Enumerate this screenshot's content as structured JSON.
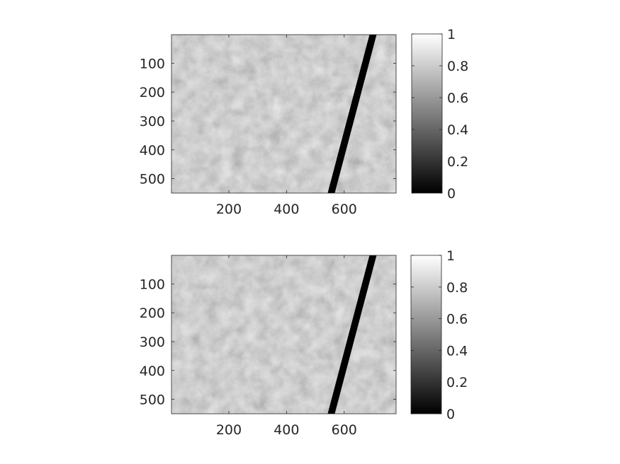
{
  "chart_data": [
    {
      "type": "heatmap",
      "title": "",
      "xlabel": "",
      "ylabel": "",
      "colormap": "gray",
      "xlim": [
        1,
        780
      ],
      "ylim": [
        1,
        550
      ],
      "y_reversed": true,
      "x_ticks": [
        200,
        400,
        600
      ],
      "x_tick_labels": [
        "200",
        "400",
        "600"
      ],
      "y_ticks": [
        100,
        200,
        300,
        400,
        500
      ],
      "y_tick_labels": [
        "100",
        "200",
        "300",
        "400",
        "500"
      ],
      "colorbar": {
        "range": [
          0,
          1
        ],
        "ticks": [
          0,
          0.2,
          0.4,
          0.6,
          0.8,
          1
        ],
        "tick_labels": [
          "0",
          "0.2",
          "0.4",
          "0.6",
          "0.8",
          "1"
        ]
      },
      "image_content": "grayscale electron-microscopy texture with a dark diagonal stripe from top (x≈700) to bottom (x≈555)",
      "stripe": {
        "top_x": 700,
        "bottom_x": 555,
        "value": 0
      }
    },
    {
      "type": "heatmap",
      "title": "",
      "xlabel": "",
      "ylabel": "",
      "colormap": "gray",
      "xlim": [
        1,
        780
      ],
      "ylim": [
        1,
        550
      ],
      "y_reversed": true,
      "x_ticks": [
        200,
        400,
        600
      ],
      "x_tick_labels": [
        "200",
        "400",
        "600"
      ],
      "y_ticks": [
        100,
        200,
        300,
        400,
        500
      ],
      "y_tick_labels": [
        "100",
        "200",
        "300",
        "400",
        "500"
      ],
      "colorbar": {
        "range": [
          0,
          1
        ],
        "ticks": [
          0,
          0.2,
          0.4,
          0.6,
          0.8,
          1
        ],
        "tick_labels": [
          "0",
          "0.2",
          "0.4",
          "0.6",
          "0.8",
          "1"
        ]
      },
      "image_content": "grayscale electron-microscopy texture with a dark diagonal stripe from top (x≈700) to bottom (x≈555)",
      "stripe": {
        "top_x": 700,
        "bottom_x": 555,
        "value": 0
      }
    }
  ]
}
